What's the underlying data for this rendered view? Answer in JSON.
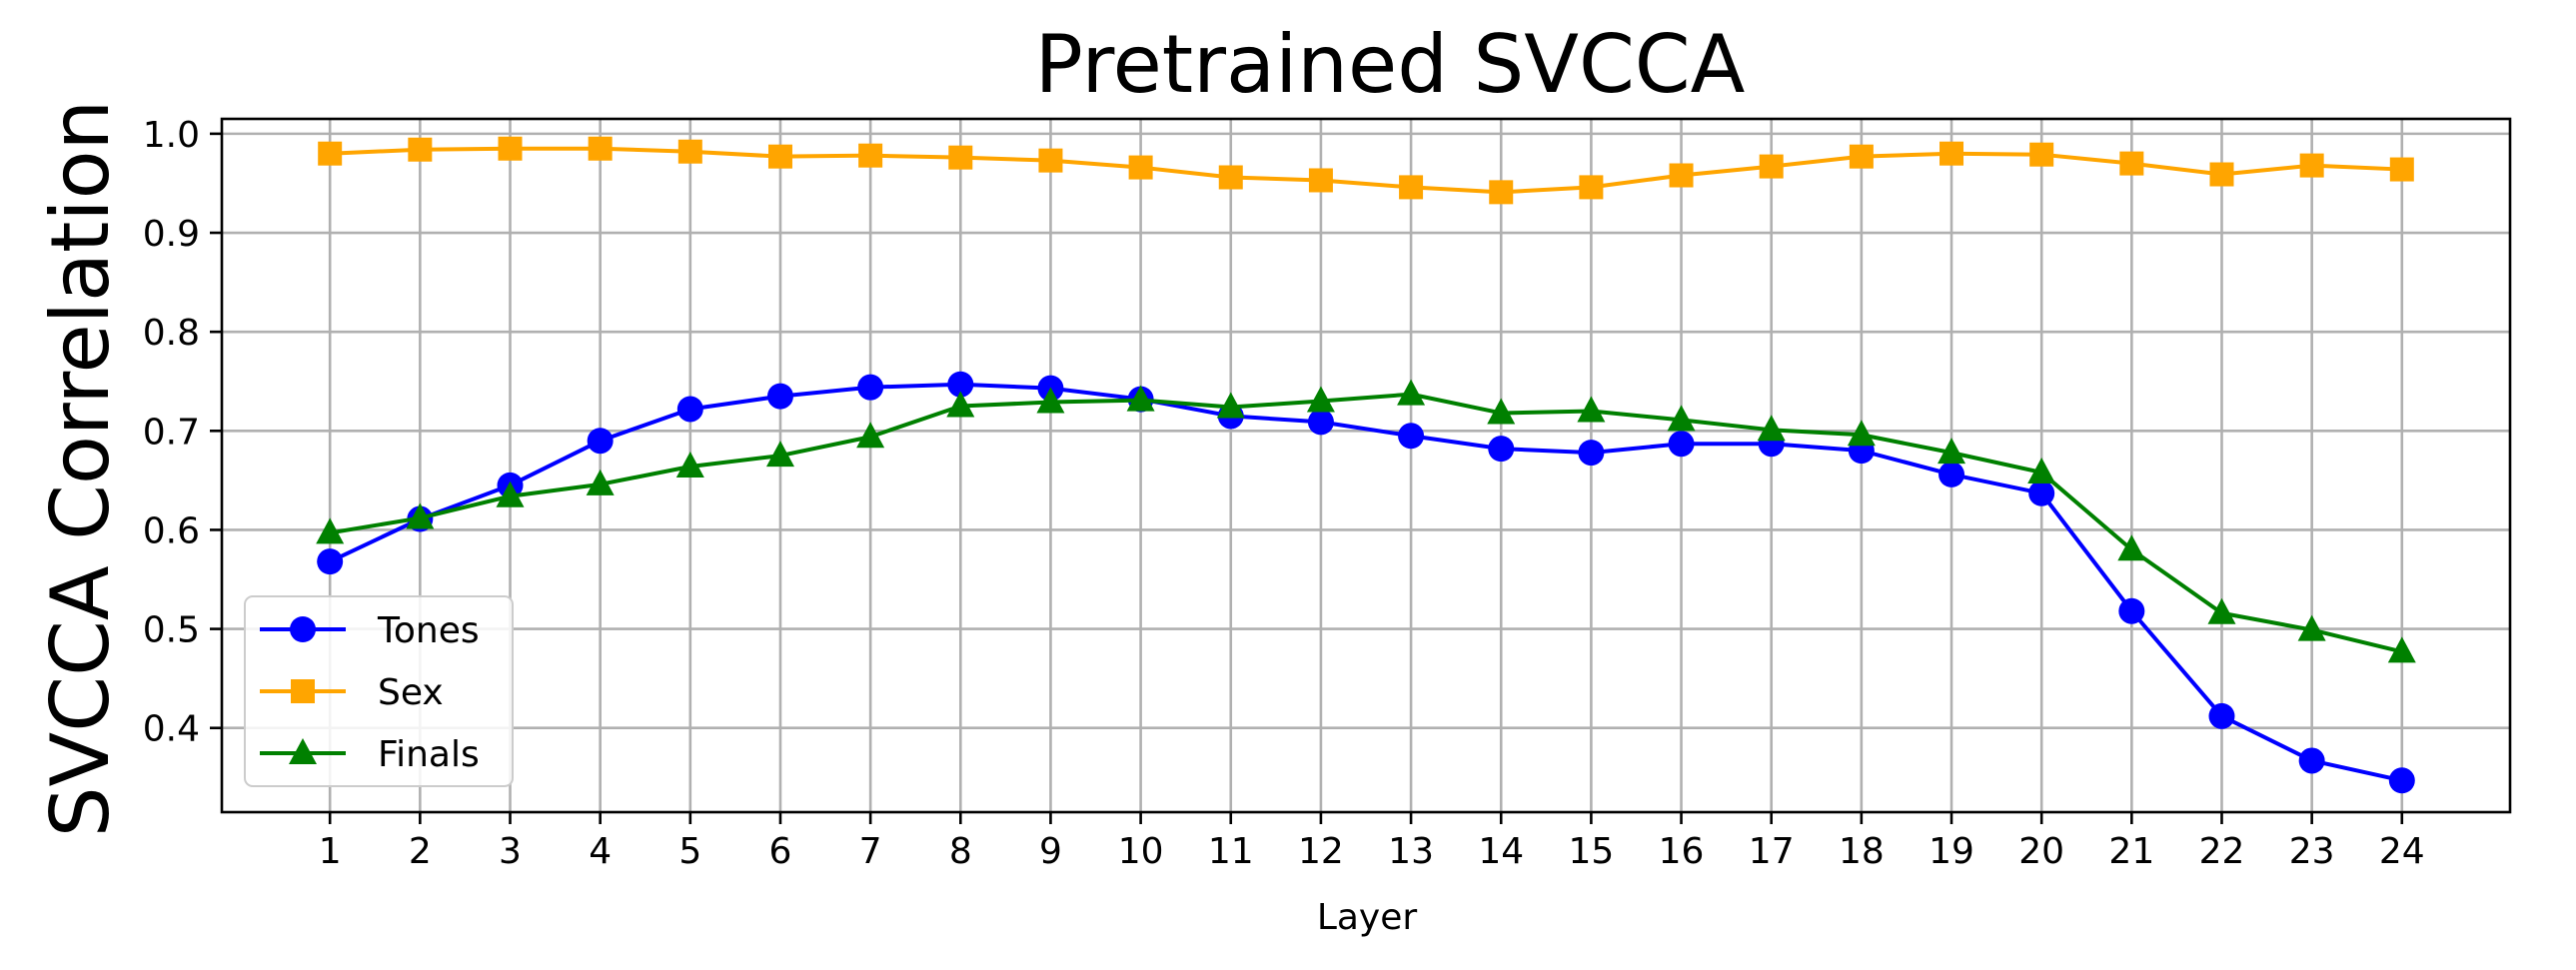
{
  "chart_data": {
    "type": "line",
    "title": "Pretrained SVCCA",
    "xlabel": "Layer",
    "ylabel": "SVCCA Correlation",
    "x": [
      1,
      2,
      3,
      4,
      5,
      6,
      7,
      8,
      9,
      10,
      11,
      12,
      13,
      14,
      15,
      16,
      17,
      18,
      19,
      20,
      21,
      22,
      23,
      24
    ],
    "x_tick_labels": [
      "1",
      "2",
      "3",
      "4",
      "5",
      "6",
      "7",
      "8",
      "9",
      "10",
      "11",
      "12",
      "13",
      "14",
      "15",
      "16",
      "17",
      "18",
      "19",
      "20",
      "21",
      "22",
      "23",
      "24"
    ],
    "xlim": [
      -0.2,
      25.2
    ],
    "ylim": [
      0.315,
      1.015
    ],
    "y_ticks": [
      0.4,
      0.5,
      0.6,
      0.7,
      0.8,
      0.9,
      1.0
    ],
    "y_tick_labels": [
      "0.4",
      "0.5",
      "0.6",
      "0.7",
      "0.8",
      "0.9",
      "1.0"
    ],
    "grid": true,
    "legend_position": "lower-left",
    "series": [
      {
        "name": "Tones",
        "color": "#0000ff",
        "marker": "circle",
        "values": [
          0.568,
          0.611,
          0.645,
          0.69,
          0.722,
          0.735,
          0.744,
          0.747,
          0.743,
          0.732,
          0.715,
          0.709,
          0.695,
          0.682,
          0.678,
          0.687,
          0.687,
          0.68,
          0.656,
          0.637,
          0.518,
          0.412,
          0.367,
          0.347
        ]
      },
      {
        "name": "Sex",
        "color": "#ffa500",
        "marker": "square",
        "values": [
          0.98,
          0.984,
          0.985,
          0.985,
          0.982,
          0.977,
          0.978,
          0.976,
          0.973,
          0.966,
          0.956,
          0.953,
          0.946,
          0.941,
          0.946,
          0.958,
          0.967,
          0.977,
          0.98,
          0.979,
          0.97,
          0.959,
          0.968,
          0.964
        ]
      },
      {
        "name": "Finals",
        "color": "#008000",
        "marker": "triangle",
        "values": [
          0.597,
          0.612,
          0.634,
          0.646,
          0.664,
          0.675,
          0.694,
          0.725,
          0.729,
          0.731,
          0.724,
          0.73,
          0.737,
          0.718,
          0.72,
          0.711,
          0.701,
          0.696,
          0.678,
          0.658,
          0.58,
          0.516,
          0.499,
          0.477
        ]
      }
    ]
  }
}
